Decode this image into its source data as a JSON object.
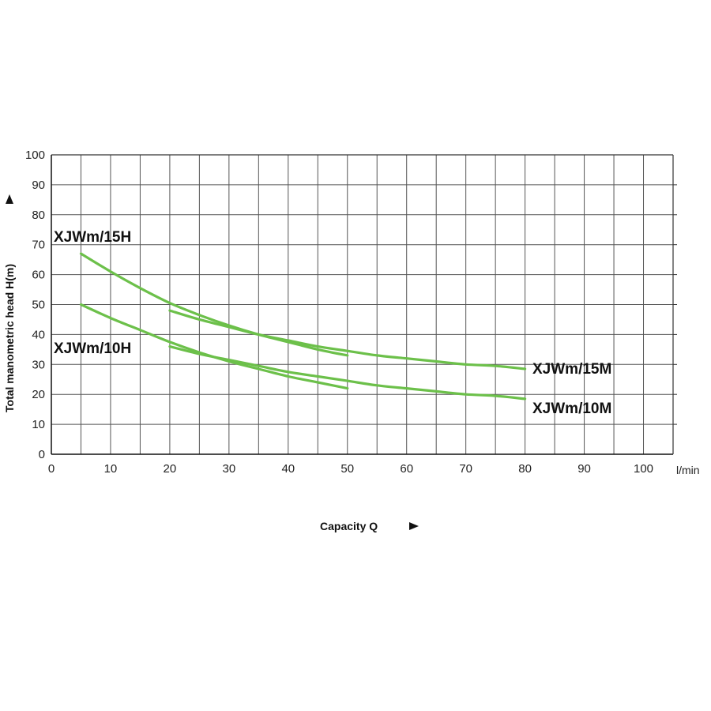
{
  "chart_data": {
    "type": "line",
    "title": "",
    "xlabel": "Capacity Q",
    "ylabel": "Total manometric head H(m)",
    "x_unit": "l/min",
    "xlim": [
      0,
      105
    ],
    "ylim": [
      0,
      100
    ],
    "x_ticks": [
      "0",
      "10",
      "20",
      "30",
      "40",
      "50",
      "60",
      "70",
      "80",
      "90",
      "100"
    ],
    "y_ticks": [
      "0",
      "10",
      "20",
      "30",
      "40",
      "50",
      "60",
      "70",
      "80",
      "90",
      "100"
    ],
    "grid": true,
    "line_color": "#6cc04a",
    "series": [
      {
        "name": "XJWm/15H",
        "points": [
          [
            5,
            67
          ],
          [
            10,
            61
          ],
          [
            15,
            55.5
          ],
          [
            20,
            50.5
          ],
          [
            25,
            46.5
          ],
          [
            30,
            43
          ],
          [
            35,
            40
          ],
          [
            40,
            37.5
          ],
          [
            45,
            35
          ],
          [
            50,
            33
          ]
        ]
      },
      {
        "name": "XJWm/10H",
        "points": [
          [
            5,
            50
          ],
          [
            10,
            45.5
          ],
          [
            15,
            41.5
          ],
          [
            20,
            37.5
          ],
          [
            25,
            34
          ],
          [
            30,
            31
          ],
          [
            35,
            28.5
          ],
          [
            40,
            26
          ],
          [
            45,
            24
          ],
          [
            50,
            22
          ]
        ]
      },
      {
        "name": "XJWm/15M",
        "points": [
          [
            20,
            48
          ],
          [
            25,
            45
          ],
          [
            30,
            42.5
          ],
          [
            35,
            40
          ],
          [
            40,
            38
          ],
          [
            45,
            36
          ],
          [
            50,
            34.5
          ],
          [
            55,
            33
          ],
          [
            60,
            32
          ],
          [
            65,
            31
          ],
          [
            70,
            30
          ],
          [
            75,
            29.5
          ],
          [
            80,
            28.5
          ]
        ]
      },
      {
        "name": "XJWm/10M",
        "points": [
          [
            20,
            36
          ],
          [
            25,
            33.5
          ],
          [
            30,
            31.5
          ],
          [
            35,
            29.5
          ],
          [
            40,
            27.5
          ],
          [
            45,
            26
          ],
          [
            50,
            24.5
          ],
          [
            55,
            23
          ],
          [
            60,
            22
          ],
          [
            65,
            21
          ],
          [
            70,
            20
          ],
          [
            75,
            19.5
          ],
          [
            80,
            18.5
          ]
        ]
      }
    ]
  }
}
